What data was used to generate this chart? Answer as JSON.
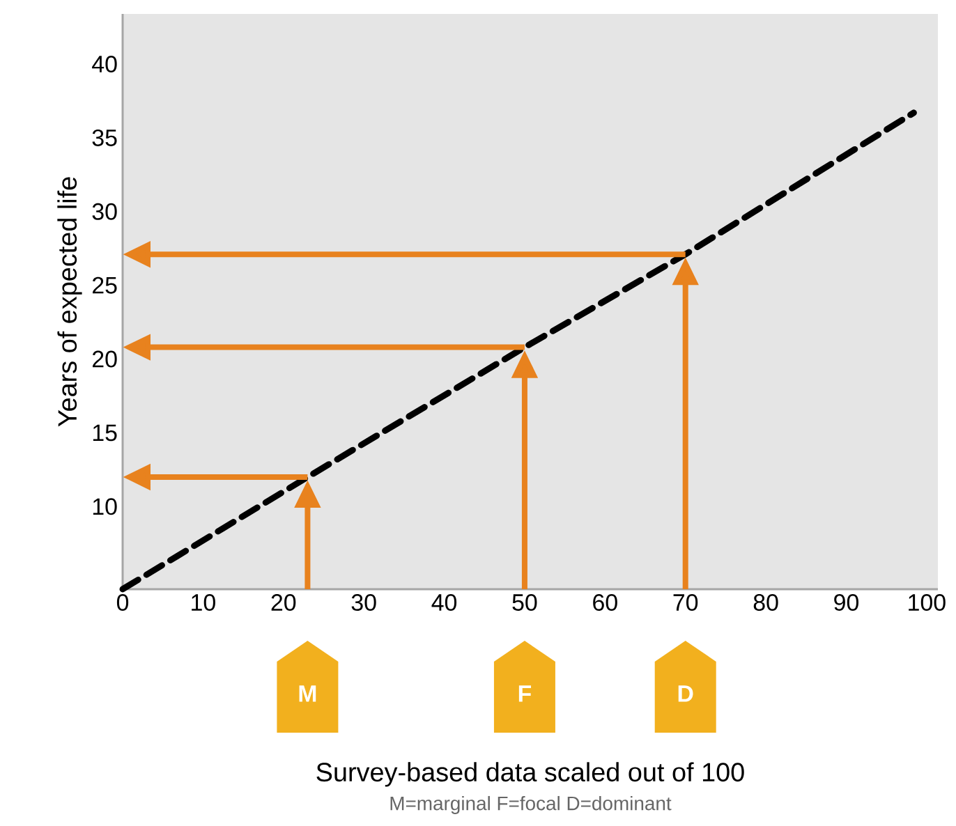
{
  "chart_data": {
    "type": "line",
    "ylabel": "Years of expected life",
    "xlim": [
      0,
      101.4
    ],
    "ylim": [
      4.4,
      43.4
    ],
    "xticks": [
      0,
      10,
      20,
      30,
      40,
      50,
      60,
      70,
      80,
      90,
      100
    ],
    "yticks": [
      10,
      15,
      20,
      25,
      30,
      35,
      40
    ],
    "grid": false,
    "marker": "none",
    "series": [
      {
        "color": "#000000",
        "line_style": "dashed",
        "x": [
          0,
          23,
          50,
          70,
          98.4
        ],
        "values": [
          4.4,
          12,
          20.8,
          27.1,
          36.7
        ]
      }
    ],
    "annotations": [
      "M",
      "F",
      "D",
      "Survey-based data scaled out of 100",
      "M=marginal  F=focal  D=dominant"
    ]
  }
}
